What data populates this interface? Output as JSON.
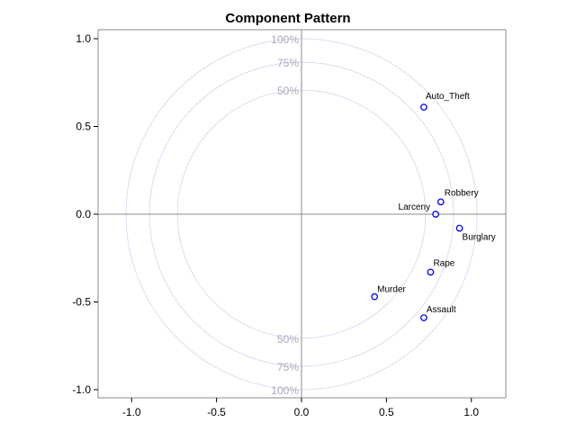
{
  "chart_data": {
    "type": "scatter",
    "title": "Component Pattern",
    "xlabel": "",
    "ylabel": "",
    "xlim": [
      -1.2,
      1.2
    ],
    "ylim": [
      -1.05,
      1.05
    ],
    "x_ticks": [
      -1.0,
      -0.5,
      0.0,
      0.5,
      1.0
    ],
    "x_tick_labels": [
      "-1.0",
      "-0.5",
      "0.0",
      "0.5",
      "1.0"
    ],
    "y_ticks": [
      1.0,
      0.5,
      0.0,
      -0.5,
      -1.0
    ],
    "y_tick_labels": [
      "1.0",
      "0.5",
      "0.0",
      "-0.5",
      "-1.0"
    ],
    "reference_circles": [
      {
        "radius": 1.0,
        "label": "100%"
      },
      {
        "radius": 0.866,
        "label": "75%"
      },
      {
        "radius": 0.707,
        "label": "50%"
      }
    ],
    "points": [
      {
        "label": "Auto_Theft",
        "x": 0.72,
        "y": 0.61
      },
      {
        "label": "Robbery",
        "x": 0.82,
        "y": 0.07
      },
      {
        "label": "Larceny",
        "x": 0.79,
        "y": 0.0
      },
      {
        "label": "Burglary",
        "x": 0.93,
        "y": -0.08
      },
      {
        "label": "Rape",
        "x": 0.76,
        "y": -0.33
      },
      {
        "label": "Murder",
        "x": 0.43,
        "y": -0.47
      },
      {
        "label": "Assault",
        "x": 0.72,
        "y": -0.59
      }
    ],
    "grid": false,
    "colors": {
      "marker": "#0000ff",
      "circle": "#dcdcf5",
      "circle_label": "#a9a9bd",
      "reference_line": "#8c8c8c",
      "frame": "#888888"
    }
  }
}
